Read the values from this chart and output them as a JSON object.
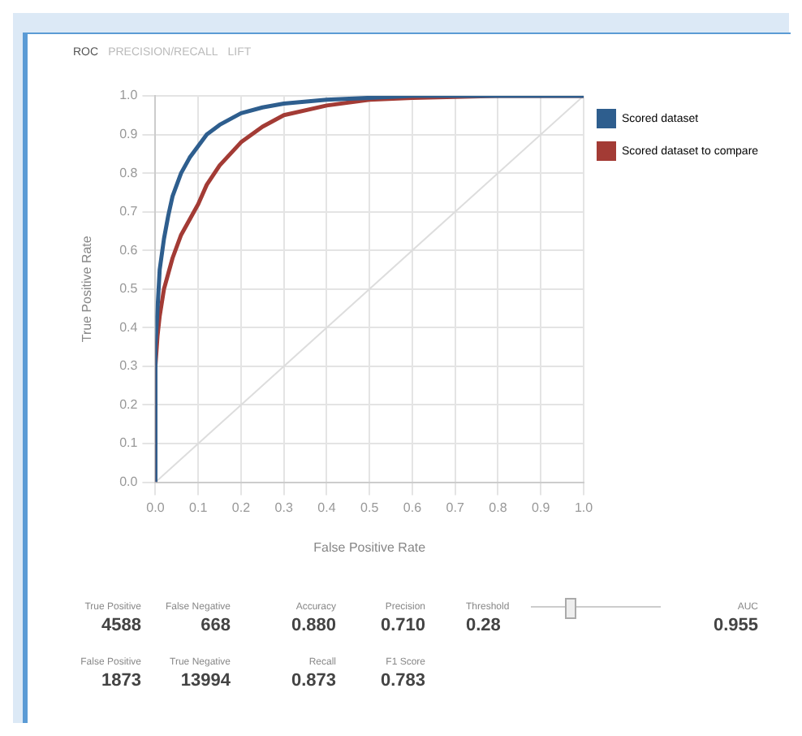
{
  "chart_data": {
    "type": "line",
    "xlabel": "False Positive Rate",
    "ylabel": "True Positive Rate",
    "series": [
      {
        "name": "Scored dataset",
        "color": "#2e5e8e",
        "x": [
          0,
          0,
          0.005,
          0.01,
          0.02,
          0.03,
          0.04,
          0.06,
          0.08,
          0.1,
          0.12,
          0.15,
          0.2,
          0.25,
          0.3,
          0.4,
          0.5,
          0.6,
          0.8,
          1
        ],
        "values": [
          0,
          0.35,
          0.45,
          0.55,
          0.63,
          0.69,
          0.74,
          0.8,
          0.84,
          0.87,
          0.9,
          0.925,
          0.955,
          0.97,
          0.98,
          0.99,
          0.995,
          1,
          1,
          1
        ]
      },
      {
        "name": "Scored dataset to compare",
        "color": "#a33b35",
        "x": [
          0,
          0,
          0.005,
          0.01,
          0.02,
          0.04,
          0.06,
          0.08,
          0.1,
          0.12,
          0.15,
          0.2,
          0.25,
          0.3,
          0.4,
          0.5,
          0.6,
          0.8,
          1
        ],
        "values": [
          0,
          0.3,
          0.38,
          0.43,
          0.5,
          0.58,
          0.64,
          0.68,
          0.72,
          0.77,
          0.82,
          0.88,
          0.92,
          0.95,
          0.975,
          0.99,
          0.995,
          1,
          1
        ]
      },
      {
        "color": "#dddddd",
        "x": [
          0,
          1
        ],
        "values": [
          0,
          1
        ]
      }
    ],
    "xlim": [
      0,
      1
    ],
    "ylim": [
      0,
      1
    ],
    "xticks": [
      {
        "value": 0,
        "label": "0.0"
      },
      0.1,
      0.2,
      0.3,
      0.4,
      0.5,
      0.6,
      0.7,
      0.8,
      0.9,
      {
        "value": 1,
        "label": "1.0"
      }
    ],
    "yticks": [
      {
        "value": 0,
        "label": "0.0"
      },
      0.1,
      0.2,
      0.3,
      0.4,
      0.5,
      0.6,
      0.7,
      0.8,
      0.9,
      {
        "value": 1,
        "label": "1.0"
      }
    ],
    "grid": true,
    "legend": "right",
    "marker": "none",
    "line_style": "solid",
    "annotations": [
      "ROC",
      "PRECISION/RECALL",
      "LIFT",
      "True Positive",
      "4588",
      "False Negative",
      "668",
      "Accuracy",
      "0.880",
      "Precision",
      "0.710",
      "Threshold",
      "0.28",
      "AUC",
      "0.955",
      "False Positive",
      "1873",
      "True Negative",
      "13994",
      "Recall",
      "0.873",
      "F1 Score",
      "0.783"
    ]
  }
}
